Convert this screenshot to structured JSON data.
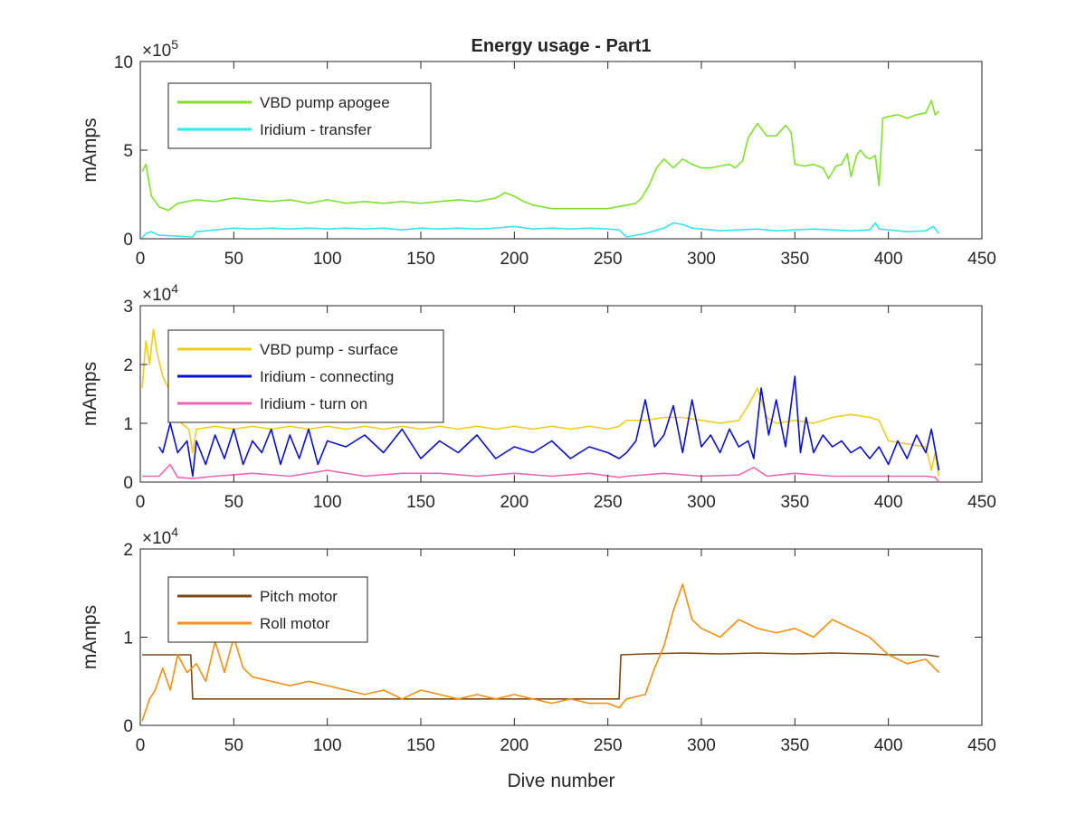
{
  "figure": {
    "title": "Energy usage - Part1",
    "xlabel": "Dive number"
  },
  "chart_data": [
    {
      "type": "line",
      "title": "Energy usage - Part1",
      "xlabel": "",
      "ylabel": "mAmps",
      "xlim": [
        0,
        450
      ],
      "ylim": [
        0,
        1000000
      ],
      "xticks": [
        0,
        50,
        100,
        150,
        200,
        250,
        300,
        350,
        400,
        450
      ],
      "yticks": [
        0,
        500000,
        1000000
      ],
      "yticklabels": [
        "0",
        "5",
        "10"
      ],
      "exponent_base": "×10",
      "exponent": "5",
      "grid": false,
      "legend_position": "top-left",
      "series": [
        {
          "name": "VBD pump apogee",
          "color": "#7fe22a",
          "x": [
            1,
            3,
            6,
            10,
            15,
            20,
            30,
            40,
            50,
            60,
            70,
            80,
            90,
            100,
            110,
            120,
            130,
            140,
            150,
            160,
            170,
            180,
            190,
            195,
            200,
            205,
            210,
            220,
            230,
            240,
            250,
            255,
            260,
            265,
            268,
            272,
            276,
            280,
            285,
            290,
            295,
            300,
            305,
            310,
            315,
            318,
            322,
            325,
            330,
            335,
            340,
            345,
            348,
            350,
            355,
            360,
            365,
            368,
            372,
            375,
            378,
            380,
            383,
            385,
            388,
            390,
            393,
            395,
            397,
            400,
            405,
            410,
            415,
            420,
            423,
            425,
            427
          ],
          "values": [
            380000,
            420000,
            240000,
            180000,
            160000,
            200000,
            220000,
            210000,
            230000,
            220000,
            210000,
            220000,
            200000,
            220000,
            200000,
            210000,
            200000,
            210000,
            200000,
            210000,
            220000,
            210000,
            230000,
            260000,
            240000,
            210000,
            190000,
            170000,
            170000,
            170000,
            170000,
            180000,
            190000,
            200000,
            230000,
            300000,
            400000,
            450000,
            400000,
            450000,
            420000,
            400000,
            400000,
            410000,
            420000,
            400000,
            440000,
            570000,
            650000,
            580000,
            580000,
            640000,
            600000,
            420000,
            410000,
            420000,
            400000,
            340000,
            410000,
            420000,
            480000,
            350000,
            470000,
            500000,
            460000,
            450000,
            470000,
            300000,
            680000,
            690000,
            700000,
            680000,
            700000,
            710000,
            780000,
            700000,
            720000
          ]
        },
        {
          "name": "Iridium - transfer",
          "color": "#33e6ee",
          "x": [
            1,
            3,
            6,
            10,
            20,
            28,
            30,
            40,
            50,
            60,
            70,
            80,
            90,
            100,
            110,
            120,
            130,
            140,
            150,
            160,
            170,
            180,
            190,
            200,
            210,
            220,
            230,
            240,
            250,
            256,
            260,
            270,
            280,
            285,
            290,
            295,
            300,
            310,
            320,
            330,
            340,
            350,
            360,
            370,
            380,
            390,
            393,
            395,
            400,
            410,
            420,
            424,
            427
          ],
          "values": [
            5000,
            30000,
            40000,
            20000,
            15000,
            10000,
            40000,
            50000,
            60000,
            55000,
            60000,
            55000,
            60000,
            55000,
            60000,
            55000,
            60000,
            50000,
            60000,
            55000,
            60000,
            55000,
            60000,
            70000,
            55000,
            60000,
            55000,
            60000,
            55000,
            50000,
            10000,
            30000,
            60000,
            90000,
            80000,
            60000,
            55000,
            45000,
            50000,
            55000,
            45000,
            50000,
            55000,
            50000,
            45000,
            50000,
            90000,
            55000,
            50000,
            40000,
            45000,
            70000,
            30000
          ]
        }
      ]
    },
    {
      "type": "line",
      "title": "",
      "xlabel": "",
      "ylabel": "mAmps",
      "xlim": [
        0,
        450
      ],
      "ylim": [
        0,
        30000
      ],
      "xticks": [
        0,
        50,
        100,
        150,
        200,
        250,
        300,
        350,
        400,
        450
      ],
      "yticks": [
        0,
        10000,
        20000,
        30000
      ],
      "yticklabels": [
        "0",
        "1",
        "2",
        "3"
      ],
      "exponent_base": "×10",
      "exponent": "4",
      "grid": false,
      "legend_position": "top-left",
      "series": [
        {
          "name": "VBD pump - surface",
          "color": "#f0cd1d",
          "x": [
            1,
            3,
            5,
            7,
            9,
            12,
            15,
            18,
            22,
            26,
            28,
            30,
            40,
            50,
            60,
            70,
            80,
            90,
            100,
            110,
            120,
            130,
            140,
            150,
            160,
            170,
            180,
            190,
            200,
            210,
            220,
            230,
            240,
            250,
            256,
            260,
            270,
            280,
            290,
            300,
            310,
            320,
            325,
            330,
            335,
            340,
            350,
            360,
            370,
            380,
            390,
            395,
            400,
            410,
            420,
            423,
            425,
            427
          ],
          "values": [
            16000,
            24000,
            20000,
            26000,
            22000,
            18000,
            16000,
            12000,
            10000,
            9000,
            5000,
            9000,
            9500,
            9000,
            9500,
            9000,
            9500,
            9000,
            9500,
            9000,
            9500,
            9000,
            9500,
            9000,
            9500,
            9000,
            9500,
            9000,
            9500,
            9000,
            9500,
            9000,
            9500,
            9000,
            9500,
            10500,
            10500,
            11000,
            11000,
            10500,
            10000,
            10500,
            13000,
            16000,
            11000,
            10000,
            10500,
            10000,
            11000,
            11500,
            11000,
            10500,
            7000,
            6500,
            6000,
            2000,
            5000,
            1000
          ]
        },
        {
          "name": "Iridium - connecting",
          "color": "#0a10d0",
          "x": [
            10,
            12,
            16,
            20,
            25,
            28,
            30,
            35,
            40,
            45,
            50,
            55,
            60,
            65,
            70,
            75,
            80,
            85,
            90,
            95,
            100,
            110,
            120,
            130,
            140,
            150,
            160,
            170,
            180,
            190,
            200,
            210,
            220,
            230,
            240,
            250,
            256,
            260,
            265,
            270,
            275,
            280,
            285,
            290,
            295,
            300,
            305,
            310,
            315,
            320,
            325,
            328,
            332,
            336,
            340,
            345,
            350,
            353,
            356,
            360,
            365,
            370,
            375,
            380,
            385,
            390,
            395,
            400,
            405,
            410,
            415,
            420,
            423,
            427
          ],
          "values": [
            6000,
            5000,
            10000,
            5000,
            7000,
            1000,
            7000,
            3000,
            8000,
            4000,
            9000,
            3000,
            7000,
            5000,
            9000,
            3000,
            8000,
            4000,
            9000,
            3000,
            7000,
            6000,
            8000,
            5000,
            9000,
            4000,
            7000,
            5000,
            8000,
            4000,
            6000,
            5000,
            7000,
            4000,
            6000,
            5000,
            4000,
            5000,
            7000,
            14000,
            6000,
            8000,
            13000,
            5000,
            14000,
            6000,
            8000,
            5000,
            9000,
            6000,
            7000,
            4000,
            16000,
            8000,
            14000,
            6000,
            18000,
            5000,
            11000,
            5000,
            8000,
            6000,
            7000,
            5000,
            6000,
            4000,
            6000,
            3000,
            7000,
            4000,
            8000,
            5000,
            9000,
            2000
          ]
        },
        {
          "name": "Iridium - turn on",
          "color": "#ec66b4",
          "x": [
            1,
            10,
            16,
            20,
            28,
            40,
            60,
            80,
            100,
            120,
            140,
            160,
            180,
            200,
            220,
            240,
            256,
            260,
            280,
            300,
            320,
            328,
            335,
            350,
            370,
            390,
            400,
            420,
            425,
            427
          ],
          "values": [
            1000,
            1000,
            3000,
            800,
            600,
            1000,
            1500,
            1000,
            2000,
            1000,
            1500,
            1500,
            1000,
            1500,
            1000,
            1500,
            800,
            1000,
            1500,
            1000,
            1200,
            2500,
            1000,
            1500,
            1000,
            1000,
            1000,
            1000,
            800,
            0
          ]
        }
      ]
    },
    {
      "type": "line",
      "title": "",
      "xlabel": "Dive number",
      "ylabel": "mAmps",
      "xlim": [
        0,
        450
      ],
      "ylim": [
        0,
        20000
      ],
      "xticks": [
        0,
        50,
        100,
        150,
        200,
        250,
        300,
        350,
        400,
        450
      ],
      "yticks": [
        0,
        10000,
        20000
      ],
      "yticklabels": [
        "0",
        "1",
        "2"
      ],
      "exponent_base": "×10",
      "exponent": "4",
      "grid": false,
      "legend_position": "top-left",
      "series": [
        {
          "name": "Pitch motor",
          "color": "#7c4a16",
          "x": [
            1,
            10,
            20,
            27,
            28,
            256,
            257,
            270,
            290,
            310,
            330,
            350,
            370,
            390,
            400,
            410,
            420,
            427
          ],
          "values": [
            8000,
            8000,
            8000,
            8000,
            3000,
            3000,
            8000,
            8100,
            8200,
            8100,
            8200,
            8100,
            8200,
            8100,
            8000,
            8000,
            8000,
            7800
          ]
        },
        {
          "name": "Roll motor",
          "color": "#f4900f",
          "x": [
            1,
            5,
            8,
            12,
            16,
            20,
            25,
            30,
            35,
            40,
            45,
            50,
            55,
            60,
            70,
            80,
            90,
            100,
            110,
            120,
            130,
            140,
            150,
            160,
            170,
            180,
            190,
            200,
            210,
            220,
            230,
            240,
            250,
            256,
            260,
            270,
            275,
            280,
            285,
            290,
            295,
            300,
            310,
            320,
            330,
            340,
            350,
            360,
            370,
            380,
            390,
            395,
            400,
            410,
            420,
            427
          ],
          "values": [
            500,
            3000,
            4000,
            6500,
            4000,
            8000,
            6000,
            7000,
            5000,
            9500,
            6000,
            10000,
            6500,
            5500,
            5000,
            4500,
            5000,
            4500,
            4000,
            3500,
            4000,
            3000,
            4000,
            3500,
            3000,
            3500,
            3000,
            3500,
            3000,
            2500,
            3000,
            2500,
            2500,
            2000,
            3000,
            3500,
            6500,
            9000,
            13000,
            16000,
            12000,
            11000,
            10000,
            12000,
            11000,
            10500,
            11000,
            10000,
            12000,
            11000,
            10000,
            9000,
            8000,
            7000,
            7500,
            6000
          ]
        }
      ]
    }
  ]
}
